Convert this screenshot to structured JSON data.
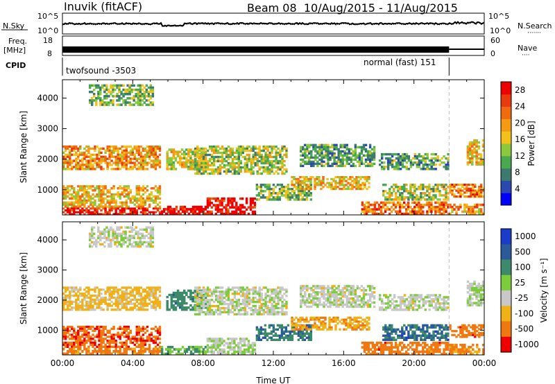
{
  "header": {
    "station": "Inuvik (fitACF)",
    "beam_info": "Beam 08  10/Aug/2015 - 11/Aug/2015"
  },
  "summary_panel": {
    "nsky_label": "N.Sky",
    "nsearch_label": "N.Search",
    "nsearch_dots": "·······",
    "freq_label_1": "Freq.",
    "freq_label_2": "[MHz]",
    "nave_label": "Nave",
    "nave_dots": "····",
    "cpid_label": "CPID",
    "noise_ticks_left": [
      "10^5",
      "10^0"
    ],
    "noise_ticks_right": [
      "10^5",
      "10^0"
    ],
    "freq_ticks_left": [
      "18",
      "8"
    ],
    "freq_ticks_right": [
      "60",
      "0"
    ],
    "cpid_programs": [
      {
        "label": "twofsound -3503",
        "start_hour": 0,
        "end_hour": 22
      },
      {
        "label": "normal (fast) 151",
        "start_hour": 22,
        "end_hour": 24
      }
    ]
  },
  "axes": {
    "ylabel": "Slant Range [km]",
    "xlabel": "Time UT",
    "y_ticks": [
      "1000",
      "2000",
      "3000",
      "4000"
    ],
    "x_ticks": [
      "00:00",
      "04:00",
      "08:00",
      "12:00",
      "16:00",
      "20:00",
      "00:00"
    ]
  },
  "power_colorbar": {
    "label": "Power [dB]",
    "ticks": [
      "4",
      "8",
      "12",
      "16",
      "20",
      "24",
      "28"
    ],
    "colors": [
      "#0000ff",
      "#2a48b0",
      "#3c7a6e",
      "#4aa84f",
      "#8cc83c",
      "#f2c21a",
      "#f59a14",
      "#f06a10",
      "#e83a0c",
      "#ee0000"
    ]
  },
  "velocity_colorbar": {
    "label": "Velocity [m s⁻¹]",
    "ticks": [
      "1000",
      "500",
      "100",
      "25",
      "-25",
      "-100",
      "-500",
      "-1000"
    ],
    "colors": [
      "#1a3cc8",
      "#2a5a9a",
      "#3c8a6a",
      "#7ccc3c",
      "#c8c8c8",
      "#f0b018",
      "#f07810",
      "#ee0000"
    ]
  },
  "chart_data": {
    "type": "heatmap",
    "title": "Inuvik (fitACF)",
    "subtitle": "Beam 08  10/Aug/2015 - 11/Aug/2015",
    "xlabel": "Time UT",
    "ylabel": "Slant Range [km]",
    "xlim_hours": [
      0,
      24
    ],
    "ylim_km": [
      180,
      4600
    ],
    "panels": [
      {
        "name": "Power",
        "unit": "dB",
        "range": [
          0,
          30
        ]
      },
      {
        "name": "Velocity",
        "unit": "m s-1",
        "range": [
          -1000,
          1000
        ]
      }
    ],
    "echo_regions": [
      {
        "t0": 0.0,
        "t1": 5.6,
        "r0": 1650,
        "r1": 2450,
        "power": 20,
        "velocity": -50
      },
      {
        "t0": 0.0,
        "t1": 5.6,
        "r0": 420,
        "r1": 1150,
        "power": 18,
        "velocity": -400
      },
      {
        "t0": 0.0,
        "t1": 5.6,
        "r0": 180,
        "r1": 420,
        "power": 28,
        "velocity": -200
      },
      {
        "t0": 5.6,
        "t1": 8.2,
        "r0": 180,
        "r1": 480,
        "power": 29,
        "velocity": 100
      },
      {
        "t0": 8.2,
        "t1": 11.0,
        "r0": 180,
        "r1": 750,
        "power": 29,
        "velocity": 20
      },
      {
        "t0": 5.9,
        "t1": 8.2,
        "r0": 1650,
        "r1": 2350,
        "power": 16,
        "velocity": 300
      },
      {
        "t0": 7.5,
        "t1": 12.8,
        "r0": 1500,
        "r1": 2450,
        "power": 14,
        "velocity": 10
      },
      {
        "t0": 11.0,
        "t1": 14.2,
        "r0": 650,
        "r1": 1200,
        "power": 12,
        "velocity": 400
      },
      {
        "t0": 13.0,
        "t1": 17.5,
        "r0": 1000,
        "r1": 1450,
        "power": 18,
        "velocity": -80
      },
      {
        "t0": 13.5,
        "t1": 17.8,
        "r0": 1750,
        "r1": 2500,
        "power": 10,
        "velocity": 10
      },
      {
        "t0": 17.0,
        "t1": 22.0,
        "r0": 180,
        "r1": 620,
        "power": 22,
        "velocity": -300
      },
      {
        "t0": 18.2,
        "t1": 22.0,
        "r0": 650,
        "r1": 1200,
        "power": 14,
        "velocity": 600
      },
      {
        "t0": 18.0,
        "t1": 22.0,
        "r0": 1650,
        "r1": 2200,
        "power": 10,
        "velocity": 10
      },
      {
        "t0": 22.0,
        "t1": 24.0,
        "r0": 750,
        "r1": 1200,
        "power": 22,
        "velocity": -300
      },
      {
        "t0": 22.0,
        "t1": 24.0,
        "r0": 180,
        "r1": 550,
        "power": 20,
        "velocity": -150
      },
      {
        "t0": 23.0,
        "t1": 24.0,
        "r0": 1800,
        "r1": 2650,
        "power": 18,
        "velocity": 20
      },
      {
        "t0": 1.5,
        "t1": 5.2,
        "r0": 3750,
        "r1": 4450,
        "power": 12,
        "velocity": 10
      }
    ]
  }
}
